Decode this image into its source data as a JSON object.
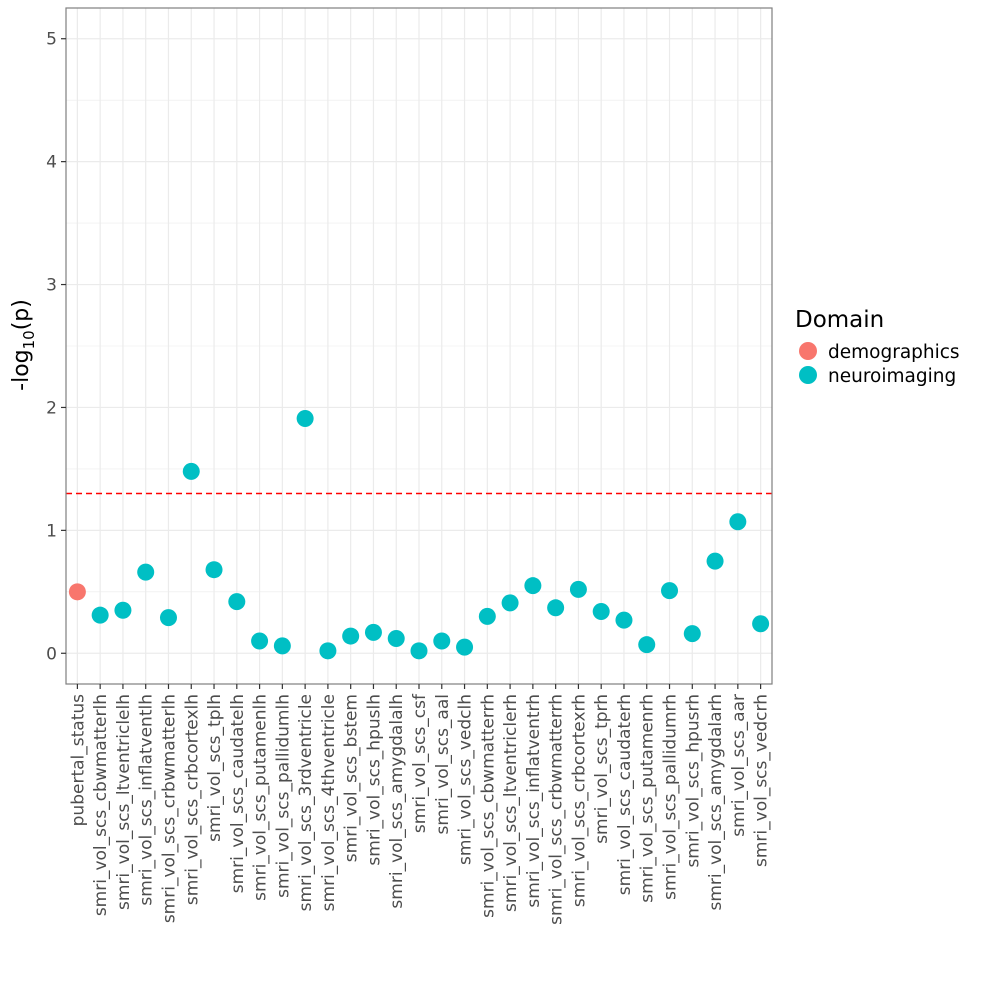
{
  "chart_data": {
    "type": "scatter",
    "title": "",
    "xlabel": "",
    "ylabel": "-log",
    "ylabel_subscript": "10",
    "ylabel_suffix": "(p)",
    "ylim": [
      -0.25,
      5.25
    ],
    "yticks": [
      0,
      1,
      2,
      3,
      4,
      5
    ],
    "ytick_labels": [
      "0",
      "1",
      "2",
      "3",
      "4",
      "5"
    ],
    "threshold": 1.3,
    "grid": true,
    "legend_position": "right",
    "legend": {
      "title": "Domain",
      "entries": [
        {
          "label": "demographics",
          "color": "#F8766D"
        },
        {
          "label": "neuroimaging",
          "color": "#00BFC4"
        }
      ]
    },
    "categories": [
      "pubertal_status",
      "smri_vol_scs_cbwmatterlh",
      "smri_vol_scs_ltventriclelh",
      "smri_vol_scs_inflatventlh",
      "smri_vol_scs_crbwmatterlh",
      "smri_vol_scs_crbcortexlh",
      "smri_vol_scs_tplh",
      "smri_vol_scs_caudatelh",
      "smri_vol_scs_putamenlh",
      "smri_vol_scs_pallidumlh",
      "smri_vol_scs_3rdventricle",
      "smri_vol_scs_4thventricle",
      "smri_vol_scs_bstem",
      "smri_vol_scs_hpuslh",
      "smri_vol_scs_amygdalalh",
      "smri_vol_scs_csf",
      "smri_vol_scs_aal",
      "smri_vol_scs_vedclh",
      "smri_vol_scs_cbwmatterrh",
      "smri_vol_scs_ltventriclerh",
      "smri_vol_scs_inflatventrh",
      "smri_vol_scs_crbwmatterrh",
      "smri_vol_scs_crbcortexrh",
      "smri_vol_scs_tprh",
      "smri_vol_scs_caudaterh",
      "smri_vol_scs_putamenrh",
      "smri_vol_scs_pallidumrh",
      "smri_vol_scs_hpusrh",
      "smri_vol_scs_amygdalarh",
      "smri_vol_scs_aar",
      "smri_vol_scs_vedcrh"
    ],
    "values": [
      0.5,
      0.31,
      0.35,
      0.66,
      0.29,
      1.48,
      0.68,
      0.42,
      0.1,
      0.06,
      1.91,
      0.02,
      0.14,
      0.17,
      0.12,
      0.02,
      0.1,
      0.05,
      0.3,
      0.41,
      0.55,
      0.37,
      0.52,
      0.34,
      0.27,
      0.07,
      0.51,
      0.16,
      0.75,
      1.07,
      0.24
    ],
    "domains": [
      "demographics",
      "neuroimaging",
      "neuroimaging",
      "neuroimaging",
      "neuroimaging",
      "neuroimaging",
      "neuroimaging",
      "neuroimaging",
      "neuroimaging",
      "neuroimaging",
      "neuroimaging",
      "neuroimaging",
      "neuroimaging",
      "neuroimaging",
      "neuroimaging",
      "neuroimaging",
      "neuroimaging",
      "neuroimaging",
      "neuroimaging",
      "neuroimaging",
      "neuroimaging",
      "neuroimaging",
      "neuroimaging",
      "neuroimaging",
      "neuroimaging",
      "neuroimaging",
      "neuroimaging",
      "neuroimaging",
      "neuroimaging",
      "neuroimaging",
      "neuroimaging"
    ]
  },
  "colors": {
    "threshold_line": "#FF0000",
    "grid": "#EBEBEB",
    "panel_border": "#7F7F7F"
  }
}
